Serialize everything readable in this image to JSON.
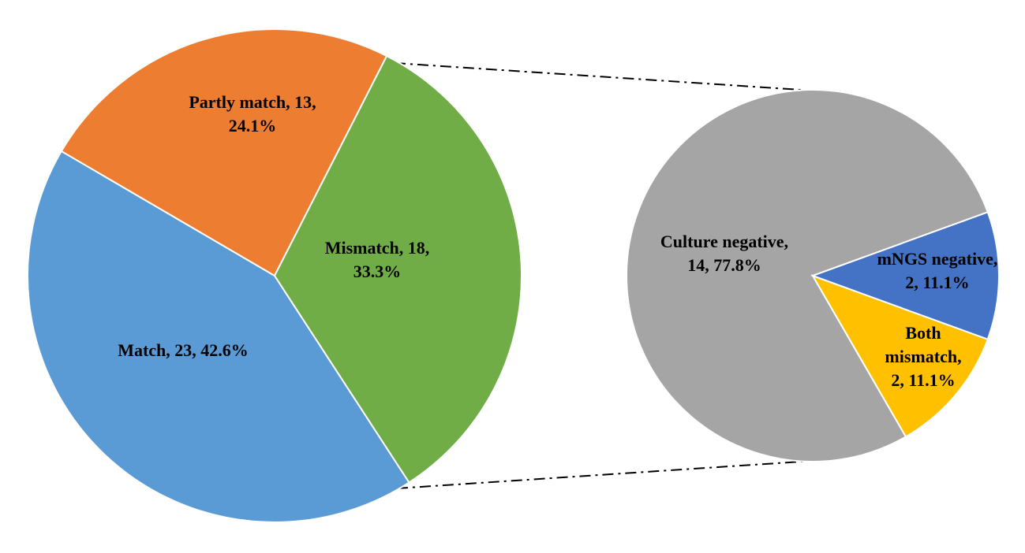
{
  "chart_data": [
    {
      "type": "pie",
      "title": "",
      "slices": [
        {
          "label": "Match",
          "value": 23,
          "percent": "42.6%",
          "color": "#5b9bd5",
          "text": [
            "Match, 23, 42.6%"
          ]
        },
        {
          "label": "Partly match",
          "value": 13,
          "percent": "24.1%",
          "color": "#ed7d31",
          "text": [
            "Partly match, 13,",
            "24.1%"
          ]
        },
        {
          "label": "Mismatch",
          "value": 18,
          "percent": "33.3%",
          "color": "#70ad47",
          "text": [
            "Mismatch, 18,",
            "33.3%"
          ]
        }
      ]
    },
    {
      "type": "pie",
      "title": "",
      "breakdown_of": "Mismatch",
      "slices": [
        {
          "label": "Culture negative",
          "value": 14,
          "percent": "77.8%",
          "color": "#a5a5a5",
          "text": [
            "Culture negative,",
            "14, 77.8%"
          ]
        },
        {
          "label": "mNGS negative",
          "value": 2,
          "percent": "11.1%",
          "color": "#ffc000",
          "text": [
            "mNGS negative,",
            "2, 11.1%"
          ]
        },
        {
          "label": "Both mismatch",
          "value": 2,
          "percent": "11.1%",
          "color": "#4472c4",
          "text": [
            "Both",
            "mismatch,",
            "2, 11.1%"
          ]
        }
      ]
    }
  ]
}
